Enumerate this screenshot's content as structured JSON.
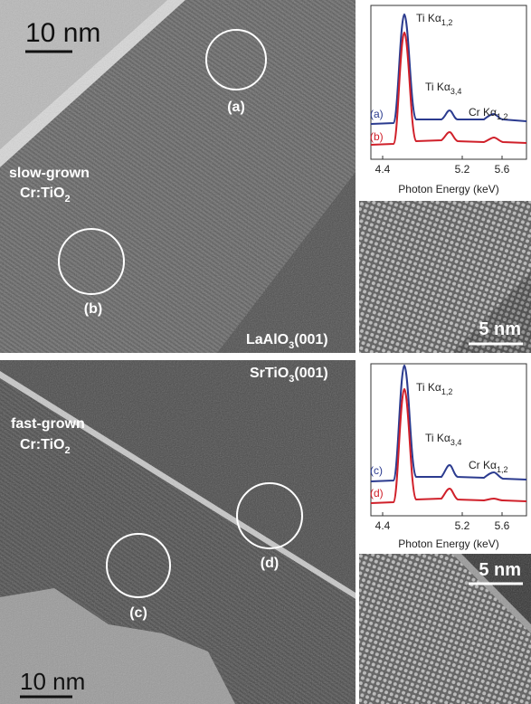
{
  "top": {
    "scale_bar": "10 nm",
    "circles": [
      "(a)",
      "(b)"
    ],
    "sample": {
      "name": "slow-grown",
      "formula": "Cr:TiO",
      "sub": "2"
    },
    "substrate": {
      "base": "LaAlO",
      "sub": "3",
      "suffix": "(001)"
    },
    "spectrum": {
      "curves": [
        "(a)",
        "(b)"
      ],
      "peaks": [
        {
          "label": "Ti Kα",
          "sub": "1,2"
        },
        {
          "label": "Ti Kα",
          "sub": "3,4"
        },
        {
          "label": "Cr Kα",
          "sub": "1,2"
        }
      ],
      "xticks": [
        4.4,
        5.2,
        5.6
      ],
      "xlabel": "Photon Energy (keV)"
    },
    "hrtem_scale_bar": "5 nm"
  },
  "bottom": {
    "scale_bar": "10 nm",
    "circles": [
      "(c)",
      "(d)"
    ],
    "sample": {
      "name": "fast-grown",
      "formula": "Cr:TiO",
      "sub": "2"
    },
    "substrate": {
      "base": "SrTiO",
      "sub": "3",
      "suffix": "(001)"
    },
    "spectrum": {
      "curves": [
        "(c)",
        "(d)"
      ],
      "peaks": [
        {
          "label": "Ti Kα",
          "sub": "1,2"
        },
        {
          "label": "Ti Kα",
          "sub": "3,4"
        },
        {
          "label": "Cr Kα",
          "sub": "1,2"
        }
      ],
      "xticks": [
        4.4,
        5.2,
        5.6
      ],
      "xlabel": "Photon Energy (keV)"
    },
    "hrtem_scale_bar": "5 nm"
  }
}
